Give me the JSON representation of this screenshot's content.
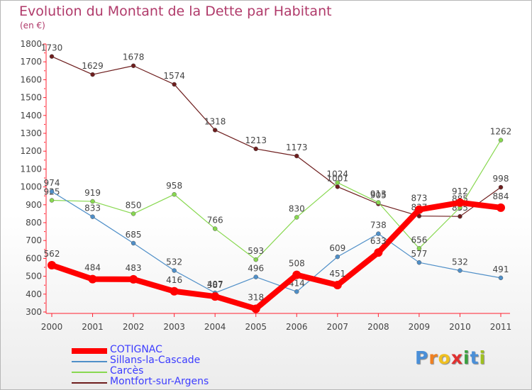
{
  "title": "Evolution du Montant de la Dette par Habitant",
  "unit_label": "(en €)",
  "logo": {
    "letters": [
      "P",
      "r",
      "o",
      "x",
      "i",
      "t",
      "i"
    ],
    "colors": [
      "#4a8fd8",
      "#f08020",
      "#f0c020",
      "#e03030",
      "#3aa040",
      "#4a8fd8",
      "#a0c020"
    ]
  },
  "chart_data": {
    "type": "line",
    "title": "Evolution du Montant de la Dette par Habitant",
    "ylabel": "(en €)",
    "x": [
      "2000",
      "2001",
      "2002",
      "2003",
      "2004",
      "2005",
      "2006",
      "2007",
      "2008",
      "2009",
      "2010",
      "2011"
    ],
    "ylim": [
      300,
      1800
    ],
    "yticks": [
      300,
      400,
      500,
      600,
      700,
      800,
      900,
      1000,
      1100,
      1200,
      1300,
      1400,
      1500,
      1600,
      1700,
      1800
    ],
    "grid": false,
    "legend": "bottom-left",
    "series": [
      {
        "name": "COTIGNAC",
        "color": "#ff0000",
        "values": [
          562,
          484,
          483,
          416,
          387,
          318,
          508,
          451,
          633,
          873,
          912,
          884
        ]
      },
      {
        "name": "Sillans-la-Cascade",
        "color": "#4f8fc8",
        "values": [
          974,
          833,
          685,
          532,
          407,
          496,
          414,
          609,
          738,
          577,
          532,
          491
        ]
      },
      {
        "name": "Carcès",
        "color": "#88d850",
        "values": [
          925,
          919,
          850,
          958,
          766,
          593,
          830,
          1024,
          913,
          656,
          885,
          1262
        ]
      },
      {
        "name": "Montfort-sur-Argens",
        "color": "#6e1e1e",
        "values": [
          1730,
          1629,
          1678,
          1574,
          1318,
          1213,
          1173,
          1001,
          905,
          837,
          835,
          998
        ]
      }
    ]
  }
}
